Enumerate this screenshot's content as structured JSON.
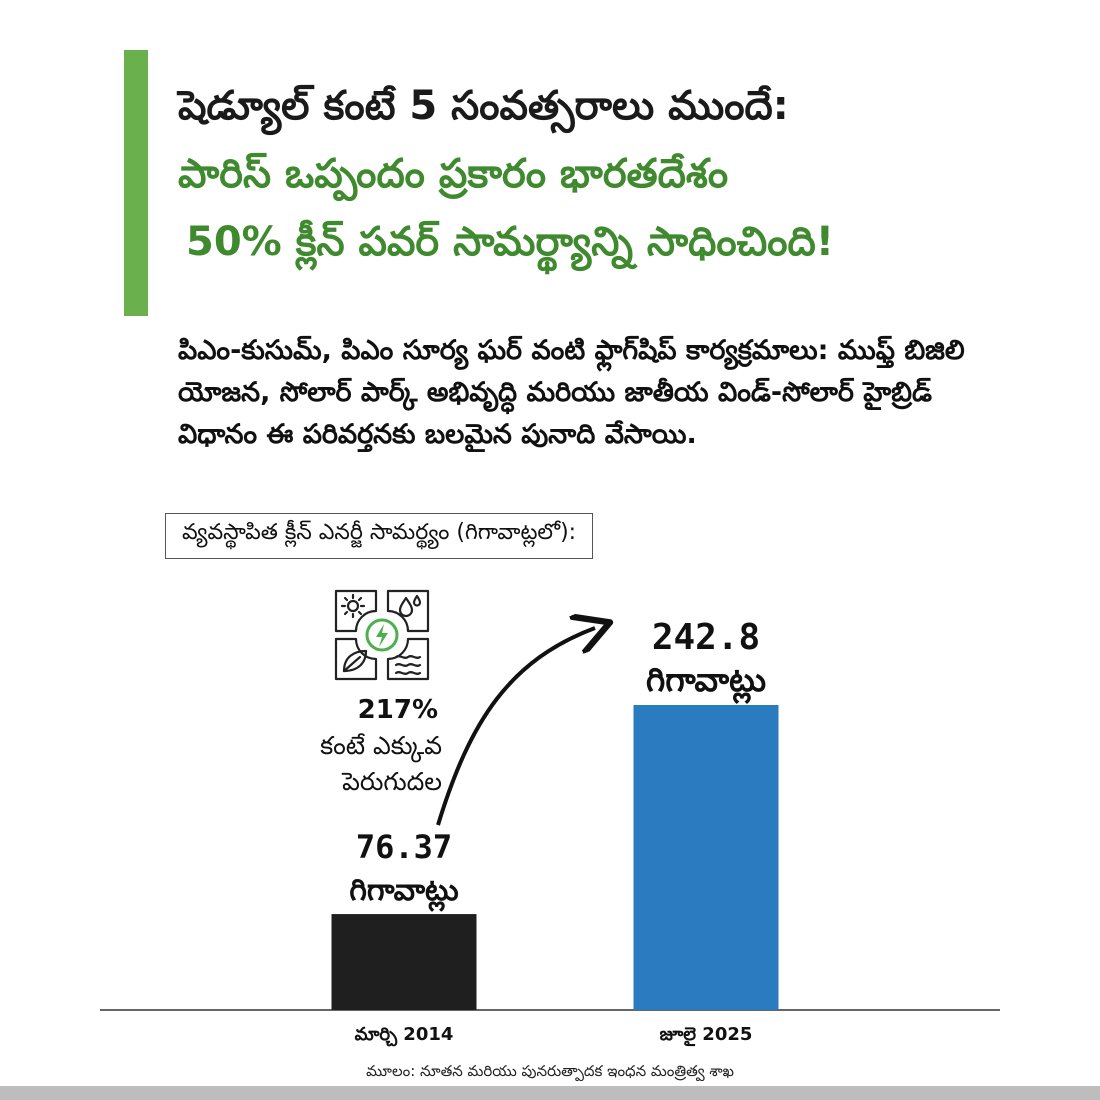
{
  "headline": {
    "line1": "షెడ్యూల్ కంటే 5 సంవత్సరాలు ముందే:",
    "line2": "పారిస్ ఒప్పందం ప్రకారం భారతదేశం",
    "line3": "50% క్లీన్ పవర్ సామర్థ్యాన్ని సాధించింది!"
  },
  "intro": "పిఎం-కుసుమ్, పిఎం సూర్య ఘర్ వంటి ఫ్లాగ్‌షిప్ కార్యక్రమాలు: ముఫ్త్ బిజిలి యోజన, సోలార్ పార్క్ అభివృద్ధి మరియు జాతీయ విండ్-సోలార్ హైబ్రిడ్ విధానం ఈ పరివర్తనకు బలమైన పునాది వేసాయి.",
  "caption": "వ్యవస్థాపిత క్లీన్ ఎనర్జీ సామర్థ్యం (గిగావాట్లలో):",
  "growth": {
    "percent": "217%",
    "text1": "కంటే ఎక్కువ",
    "text2": "పెరుగుదల"
  },
  "icon": "clean-energy-grid-icon",
  "source": "మూలం: నూతన మరియు పునరుత్పాదక ఇంధన మంత్రిత్వ శాఖ",
  "colors": {
    "accent": "#6ab04c",
    "headline_green": "#3f8a2e",
    "bar_2014": "#1f1f1f",
    "bar_2025": "#2a7bbf"
  },
  "chart_data": {
    "type": "bar",
    "categories": [
      "మార్చి 2014",
      "జూలై 2025"
    ],
    "values": [
      76.37,
      242.8
    ],
    "value_labels": [
      "76.37",
      "242.8"
    ],
    "unit_label": "గిగావాట్లు",
    "title": "వ్యవస్థాపిత క్లీన్ ఎనర్జీ సామర్థ్యం (గిగావాట్లలో):",
    "ylim": [
      0,
      260
    ],
    "grid": false
  }
}
